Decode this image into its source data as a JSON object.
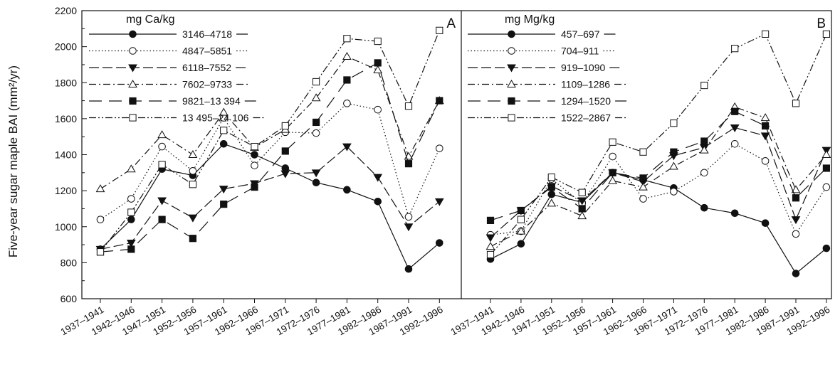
{
  "chart_data": {
    "type": "line",
    "ylabel": "Five-year sugar maple BAI (mm²/yr)",
    "ylim": [
      600,
      2200
    ],
    "yticks": [
      600,
      800,
      1000,
      1200,
      1400,
      1600,
      1800,
      2000,
      2200
    ],
    "categories": [
      "1937–1941",
      "1942–1946",
      "1947–1951",
      "1952–1956",
      "1957–1961",
      "1962–1966",
      "1967–1971",
      "1972–1976",
      "1977–1981",
      "1982–1986",
      "1987–1991",
      "1992–1996"
    ],
    "grid": false,
    "legend_position": "top-left",
    "panels": [
      {
        "letter": "A",
        "legend_title": "mg Ca/kg",
        "series": [
          {
            "name": "3146–4718",
            "marker": "filled-circle",
            "dash": "solid",
            "values": [
              875,
              1040,
              1320,
              1285,
              1460,
              1400,
              1325,
              1245,
              1205,
              1140,
              765,
              910
            ]
          },
          {
            "name": "4847–5851",
            "marker": "open-circle",
            "dash": "dotted",
            "values": [
              1040,
              1155,
              1445,
              1310,
              1605,
              1340,
              1525,
              1520,
              1685,
              1650,
              1055,
              1435
            ]
          },
          {
            "name": "6118–7552",
            "marker": "filled-triangle-down",
            "dash": "long-dash",
            "values": [
              875,
              910,
              1145,
              1050,
              1210,
              1240,
              1295,
              1300,
              1445,
              1275,
              1000,
              1140
            ]
          },
          {
            "name": "7602–9733",
            "marker": "open-triangle-up",
            "dash": "dash-dot",
            "values": [
              1210,
              1320,
              1510,
              1400,
              1635,
              1440,
              1540,
              1715,
              1945,
              1870,
              1390,
              1700
            ]
          },
          {
            "name": "9821–13 394",
            "marker": "filled-square",
            "dash": "long-dash-gap",
            "values": [
              860,
              875,
              1040,
              935,
              1125,
              1220,
              1420,
              1580,
              1815,
              1910,
              1350,
              1700
            ]
          },
          {
            "name": "13 495–24 106",
            "marker": "open-square",
            "dash": "dash-dot-dot",
            "values": [
              860,
              1080,
              1345,
              1235,
              1535,
              1445,
              1560,
              1805,
              2045,
              2030,
              1670,
              2090
            ]
          }
        ]
      },
      {
        "letter": "B",
        "legend_title": "mg Mg/kg",
        "series": [
          {
            "name": "457–697",
            "marker": "filled-circle",
            "dash": "solid",
            "values": [
              820,
              905,
              1180,
              1135,
              1300,
              1260,
              1215,
              1105,
              1075,
              1020,
              740,
              880
            ]
          },
          {
            "name": "704–911",
            "marker": "open-circle",
            "dash": "dotted",
            "values": [
              955,
              975,
              1265,
              1130,
              1390,
              1155,
              1195,
              1300,
              1460,
              1365,
              960,
              1220
            ]
          },
          {
            "name": "919–1090",
            "marker": "filled-triangle-down",
            "dash": "long-dash",
            "values": [
              940,
              1090,
              1225,
              1145,
              1300,
              1250,
              1395,
              1440,
              1550,
              1505,
              1040,
              1425
            ]
          },
          {
            "name": "1109–1286",
            "marker": "open-triangle-up",
            "dash": "dash-dot",
            "values": [
              890,
              975,
              1130,
              1060,
              1255,
              1220,
              1335,
              1425,
              1665,
              1605,
              1205,
              1400
            ]
          },
          {
            "name": "1294–1520",
            "marker": "filled-square",
            "dash": "long-dash-gap",
            "values": [
              1035,
              1090,
              1220,
              1100,
              1300,
              1270,
              1415,
              1475,
              1640,
              1560,
              1160,
              1325
            ]
          },
          {
            "name": "1522–2867",
            "marker": "open-square",
            "dash": "dash-dot-dot",
            "values": [
              845,
              1040,
              1275,
              1190,
              1470,
              1415,
              1575,
              1785,
              1990,
              2070,
              1685,
              2070
            ]
          }
        ]
      }
    ]
  }
}
